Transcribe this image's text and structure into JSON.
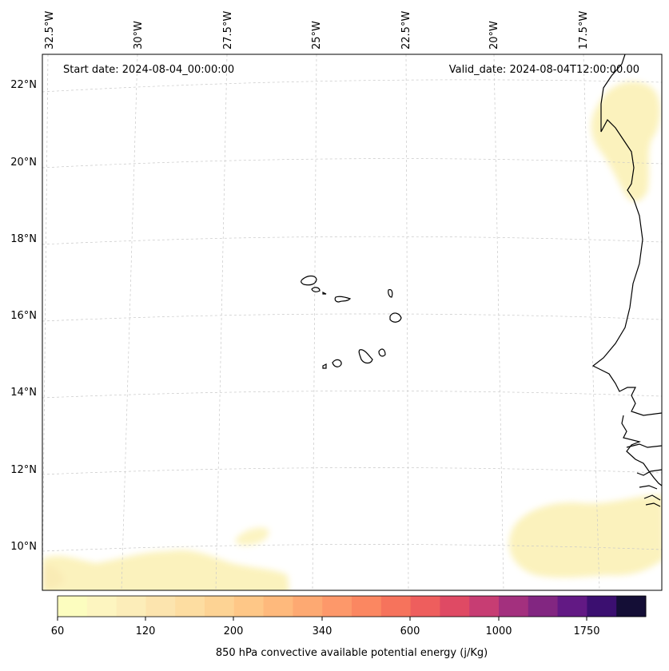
{
  "map": {
    "start_label": "Start date: 2024-08-04_00:00:00",
    "valid_label": "Valid_date: 2024-08-04T12:00:00.00",
    "lon_labels": [
      "32.5°W",
      "30°W",
      "27.5°W",
      "25°W",
      "22.5°W",
      "20°W",
      "17.5°W"
    ],
    "lat_labels": [
      "22°N",
      "20°N",
      "18°N",
      "16°N",
      "14°N",
      "12°N",
      "10°N"
    ]
  },
  "colorbar": {
    "label": "850 hPa convective available potential energy (j/Kg)",
    "ticks": [
      "60",
      "120",
      "200",
      "340",
      "600",
      "1000",
      "1750"
    ],
    "colors": [
      "#fcfdbf",
      "#fdf5c0",
      "#fcedb9",
      "#fce4ae",
      "#fddda1",
      "#fdd394",
      "#fec787",
      "#feb97c",
      "#fda972",
      "#fd986a",
      "#fb8761",
      "#f6735c",
      "#ee5e5d",
      "#df4a64",
      "#c73d73",
      "#a3307e",
      "#822681",
      "#621984",
      "#3b0f70",
      "#140e36"
    ]
  }
}
